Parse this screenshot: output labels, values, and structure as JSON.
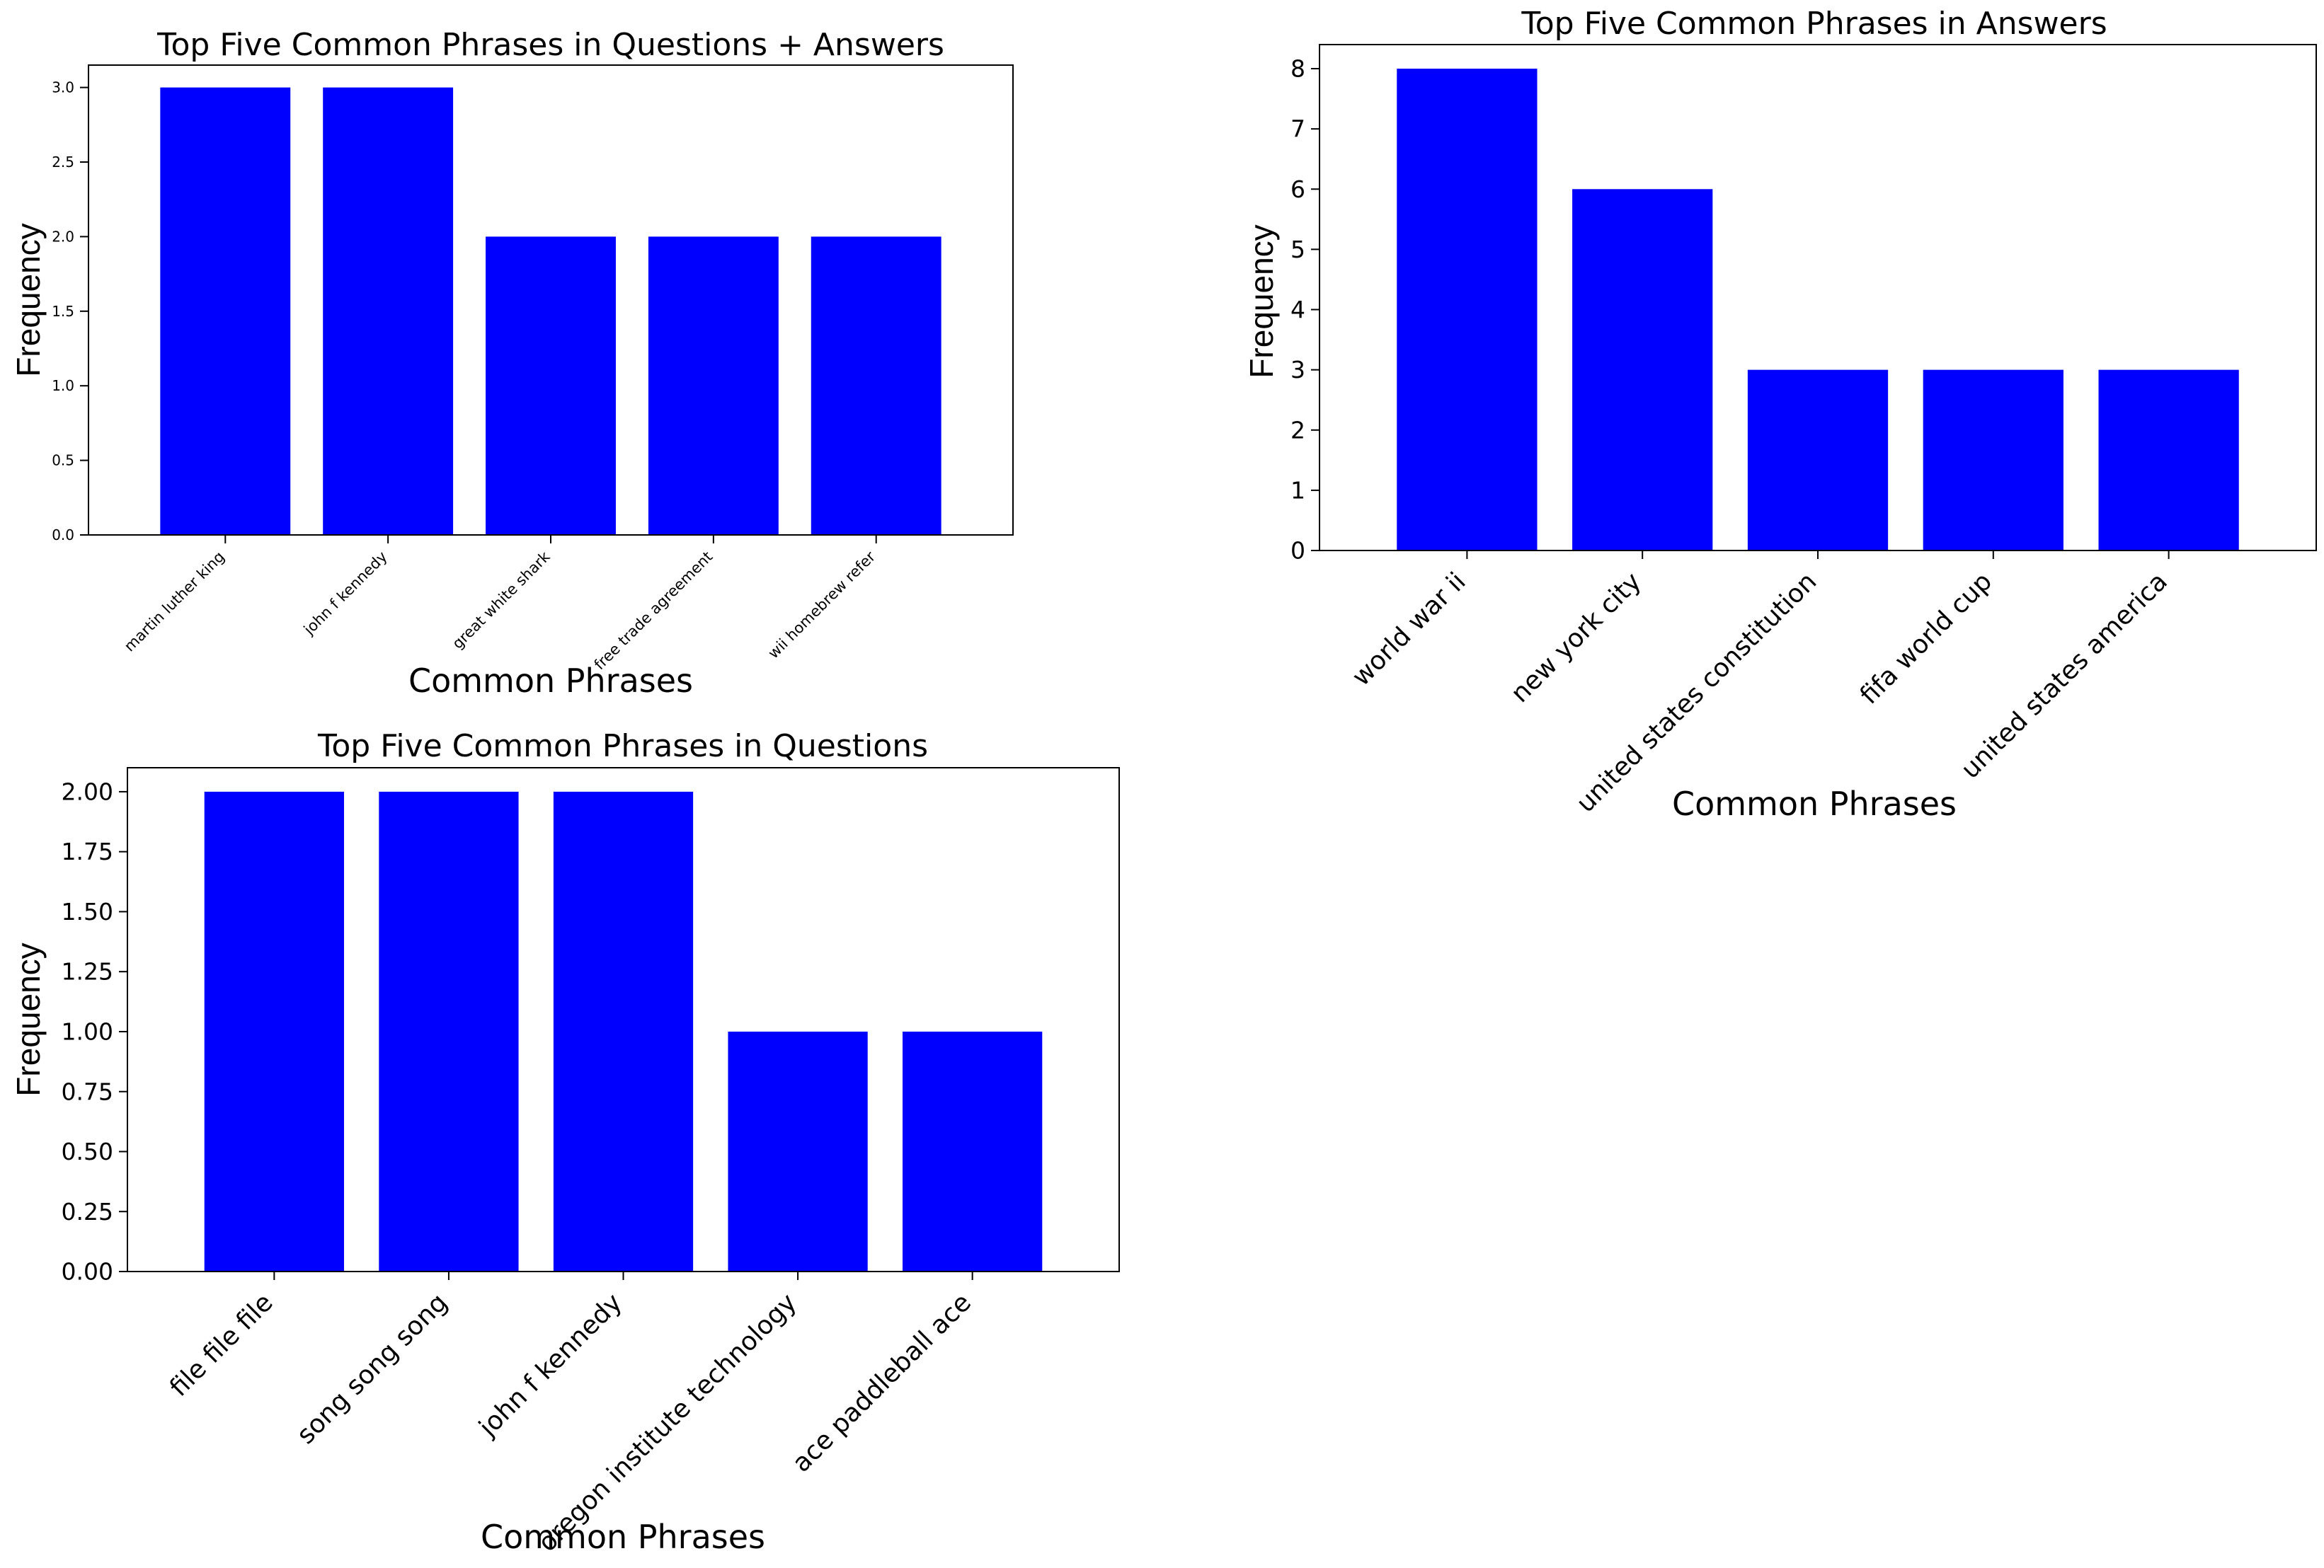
{
  "chart_data": [
    {
      "type": "bar",
      "title": "Top Five Common Phrases in Questions + Answers",
      "xlabel": "Common Phrases",
      "ylabel": "Frequency",
      "categories": [
        "martin luther king",
        "john f kennedy",
        "great white shark",
        "free trade agreement",
        "wii homebrew refer"
      ],
      "values": [
        3,
        3,
        2,
        2,
        2
      ],
      "ylim": [
        0,
        3.15
      ],
      "yticks": [
        "0.0",
        "0.5",
        "1.0",
        "1.5",
        "2.0",
        "2.5",
        "3.0"
      ],
      "bar_color": "#0000ff",
      "grid": false
    },
    {
      "type": "bar",
      "title": "Top Five Common Phrases in Answers",
      "xlabel": "Common Phrases",
      "ylabel": "Frequency",
      "categories": [
        "world war ii",
        "new york city",
        "united states constitution",
        "fifa world cup",
        "united states america"
      ],
      "values": [
        8,
        6,
        3,
        3,
        3
      ],
      "ylim": [
        0,
        8.4
      ],
      "yticks": [
        "0",
        "1",
        "2",
        "3",
        "4",
        "5",
        "6",
        "7",
        "8"
      ],
      "bar_color": "#0000ff",
      "grid": false
    },
    {
      "type": "bar",
      "title": "Top Five Common Phrases in Questions",
      "xlabel": "Common Phrases",
      "ylabel": "Frequency",
      "categories": [
        "file file file",
        "song song song",
        "john f kennedy",
        "oregon institute technology",
        "ace paddleball ace"
      ],
      "values": [
        2,
        2,
        2,
        1,
        1
      ],
      "ylim": [
        0,
        2.1
      ],
      "yticks": [
        "0.00",
        "0.25",
        "0.50",
        "0.75",
        "1.00",
        "1.25",
        "1.50",
        "1.75",
        "2.00"
      ],
      "bar_color": "#0000ff",
      "grid": false
    }
  ]
}
